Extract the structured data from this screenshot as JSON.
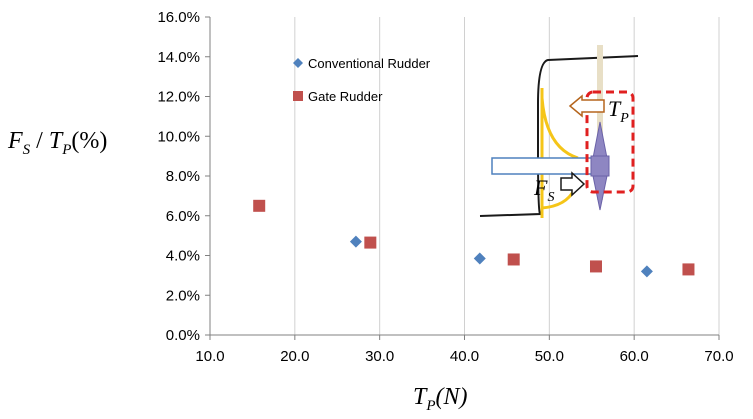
{
  "chart_data": {
    "type": "scatter",
    "xlim": [
      10,
      70
    ],
    "ylim": [
      0,
      16
    ],
    "x_ticks": [
      "10.0",
      "20.0",
      "30.0",
      "40.0",
      "50.0",
      "60.0",
      "70.0"
    ],
    "y_ticks": [
      "0.0%",
      "2.0%",
      "4.0%",
      "6.0%",
      "8.0%",
      "10.0%",
      "12.0%",
      "14.0%",
      "16.0%"
    ],
    "grid": "vertical",
    "legend_position": "top-left",
    "xlabel": {
      "main": "T",
      "sub": "P",
      "rest": "(N)"
    },
    "ylabel": {
      "main1": "F",
      "sub1": "S",
      "slash": " / ",
      "main2": "T",
      "sub2": "P",
      "rest": "(%)"
    },
    "series": [
      {
        "name": "Conventional Rudder",
        "marker": "diamond",
        "color": "#4F81BD",
        "points": [
          {
            "x": 27.2,
            "y": 4.7
          },
          {
            "x": 41.8,
            "y": 3.85
          },
          {
            "x": 61.5,
            "y": 3.2
          }
        ]
      },
      {
        "name": "Gate Rudder",
        "marker": "square",
        "color": "#C0504D",
        "points": [
          {
            "x": 15.8,
            "y": 6.5
          },
          {
            "x": 28.9,
            "y": 4.65
          },
          {
            "x": 45.8,
            "y": 3.8
          },
          {
            "x": 55.5,
            "y": 3.45
          },
          {
            "x": 66.4,
            "y": 3.3
          }
        ]
      }
    ],
    "annotations": {
      "fs_label": {
        "main": "F",
        "sub": "S"
      },
      "tp_label": {
        "main": "T",
        "sub": "P"
      }
    }
  }
}
